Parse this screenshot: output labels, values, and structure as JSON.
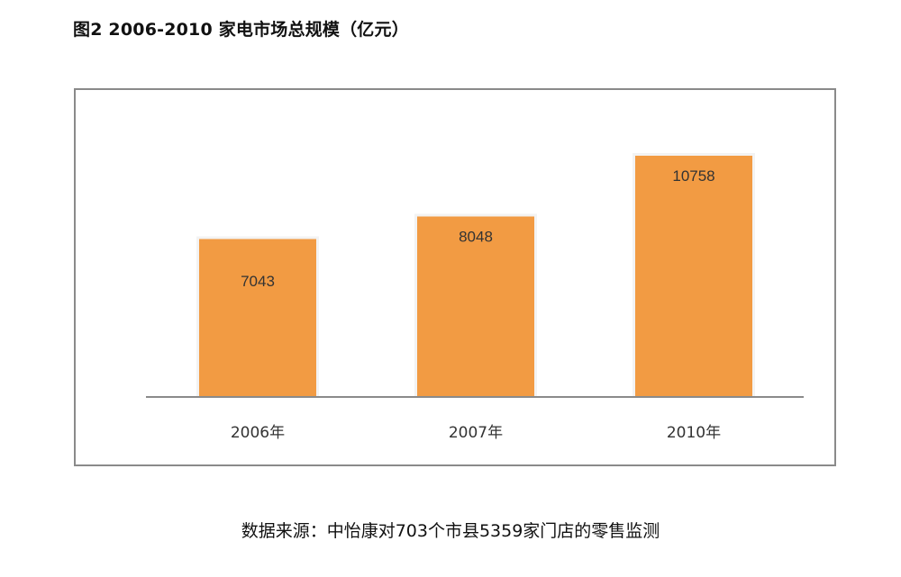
{
  "title": "图2 2006-2010 家电市场总规模（亿元）",
  "source": "数据来源：中怡康对703个市县5359家门店的零售监测",
  "colors": {
    "bar": "#f29b43",
    "axis": "#8a8a8a",
    "frame": "#8a8a8a",
    "label": "#333333"
  },
  "chart_data": {
    "type": "bar",
    "categories": [
      "2006年",
      "2007年",
      "2010年"
    ],
    "values": [
      7043,
      8048,
      10758
    ],
    "data_labels": [
      "7043",
      "8048",
      "10758"
    ],
    "title": "图2 2006-2010 家电市场总规模（亿元）",
    "xlabel": "",
    "ylabel": "",
    "ylim": [
      0,
      10758
    ],
    "grid": false,
    "legend": "none"
  }
}
